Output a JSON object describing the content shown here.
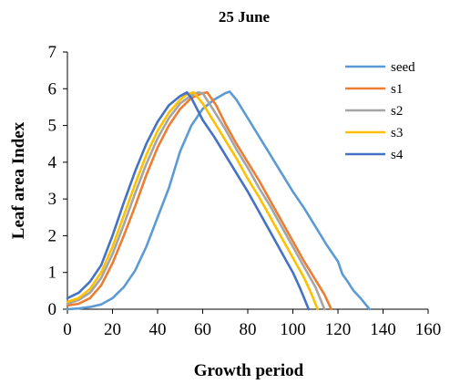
{
  "chart_data": {
    "type": "line",
    "title": "25 June",
    "xlabel": "Growth period",
    "ylabel": "Leaf area Index",
    "xlim": [
      0,
      160
    ],
    "ylim": [
      0,
      7
    ],
    "xticks": [
      0,
      20,
      40,
      60,
      80,
      100,
      120,
      140,
      160
    ],
    "yticks": [
      0,
      1,
      2,
      3,
      4,
      5,
      6,
      7
    ],
    "grid": false,
    "legend_position": "top-right",
    "series": [
      {
        "name": "seed",
        "color": "#5B9BD5",
        "points": [
          [
            0,
            0
          ],
          [
            5,
            0.02
          ],
          [
            10,
            0.06
          ],
          [
            15,
            0.13
          ],
          [
            20,
            0.3
          ],
          [
            25,
            0.6
          ],
          [
            30,
            1.05
          ],
          [
            35,
            1.7
          ],
          [
            40,
            2.5
          ],
          [
            45,
            3.3
          ],
          [
            50,
            4.3
          ],
          [
            55,
            5.0
          ],
          [
            60,
            5.45
          ],
          [
            65,
            5.7
          ],
          [
            70,
            5.88
          ],
          [
            72,
            5.92
          ],
          [
            75,
            5.7
          ],
          [
            80,
            5.2
          ],
          [
            85,
            4.7
          ],
          [
            90,
            4.2
          ],
          [
            95,
            3.7
          ],
          [
            100,
            3.2
          ],
          [
            105,
            2.75
          ],
          [
            110,
            2.25
          ],
          [
            115,
            1.75
          ],
          [
            120,
            1.3
          ],
          [
            122,
            0.95
          ],
          [
            124,
            0.78
          ],
          [
            127,
            0.5
          ],
          [
            130,
            0.3
          ],
          [
            134,
            0
          ]
        ]
      },
      {
        "name": "s1",
        "color": "#ED7D31",
        "points": [
          [
            0,
            0.1
          ],
          [
            5,
            0.15
          ],
          [
            10,
            0.3
          ],
          [
            15,
            0.65
          ],
          [
            20,
            1.25
          ],
          [
            25,
            2.0
          ],
          [
            30,
            2.8
          ],
          [
            35,
            3.65
          ],
          [
            40,
            4.4
          ],
          [
            45,
            5.0
          ],
          [
            50,
            5.45
          ],
          [
            55,
            5.75
          ],
          [
            60,
            5.88
          ],
          [
            62,
            5.9
          ],
          [
            66,
            5.55
          ],
          [
            70,
            5.05
          ],
          [
            75,
            4.5
          ],
          [
            80,
            4.0
          ],
          [
            85,
            3.5
          ],
          [
            90,
            2.95
          ],
          [
            95,
            2.4
          ],
          [
            100,
            1.85
          ],
          [
            105,
            1.3
          ],
          [
            110,
            0.8
          ],
          [
            114,
            0.4
          ],
          [
            117,
            0
          ]
        ]
      },
      {
        "name": "s2",
        "color": "#A5A5A5",
        "points": [
          [
            0,
            0.15
          ],
          [
            5,
            0.25
          ],
          [
            10,
            0.45
          ],
          [
            15,
            0.85
          ],
          [
            20,
            1.5
          ],
          [
            25,
            2.3
          ],
          [
            30,
            3.15
          ],
          [
            35,
            3.95
          ],
          [
            40,
            4.65
          ],
          [
            45,
            5.2
          ],
          [
            50,
            5.6
          ],
          [
            55,
            5.82
          ],
          [
            58,
            5.9
          ],
          [
            60,
            5.88
          ],
          [
            65,
            5.4
          ],
          [
            70,
            4.9
          ],
          [
            75,
            4.35
          ],
          [
            80,
            3.85
          ],
          [
            85,
            3.3
          ],
          [
            90,
            2.8
          ],
          [
            95,
            2.25
          ],
          [
            100,
            1.7
          ],
          [
            105,
            1.15
          ],
          [
            110,
            0.6
          ],
          [
            114,
            0
          ]
        ]
      },
      {
        "name": "s3",
        "color": "#FFC000",
        "points": [
          [
            0,
            0.2
          ],
          [
            5,
            0.3
          ],
          [
            10,
            0.55
          ],
          [
            15,
            1.0
          ],
          [
            20,
            1.7
          ],
          [
            25,
            2.55
          ],
          [
            30,
            3.4
          ],
          [
            35,
            4.2
          ],
          [
            40,
            4.85
          ],
          [
            45,
            5.35
          ],
          [
            50,
            5.7
          ],
          [
            53,
            5.85
          ],
          [
            56,
            5.9
          ],
          [
            60,
            5.6
          ],
          [
            65,
            5.1
          ],
          [
            70,
            4.6
          ],
          [
            75,
            4.1
          ],
          [
            80,
            3.55
          ],
          [
            85,
            3.05
          ],
          [
            90,
            2.5
          ],
          [
            95,
            1.95
          ],
          [
            100,
            1.4
          ],
          [
            105,
            0.85
          ],
          [
            108,
            0.45
          ],
          [
            111,
            0
          ]
        ]
      },
      {
        "name": "s4",
        "color": "#4472C4",
        "points": [
          [
            0,
            0.3
          ],
          [
            5,
            0.45
          ],
          [
            10,
            0.75
          ],
          [
            15,
            1.2
          ],
          [
            20,
            2.0
          ],
          [
            25,
            2.9
          ],
          [
            30,
            3.75
          ],
          [
            35,
            4.5
          ],
          [
            40,
            5.1
          ],
          [
            45,
            5.55
          ],
          [
            50,
            5.8
          ],
          [
            53,
            5.9
          ],
          [
            55,
            5.75
          ],
          [
            60,
            5.15
          ],
          [
            65,
            4.7
          ],
          [
            70,
            4.2
          ],
          [
            75,
            3.7
          ],
          [
            80,
            3.2
          ],
          [
            85,
            2.65
          ],
          [
            90,
            2.1
          ],
          [
            95,
            1.55
          ],
          [
            100,
            1.0
          ],
          [
            103,
            0.6
          ],
          [
            105,
            0.3
          ],
          [
            107,
            0
          ]
        ]
      }
    ]
  }
}
